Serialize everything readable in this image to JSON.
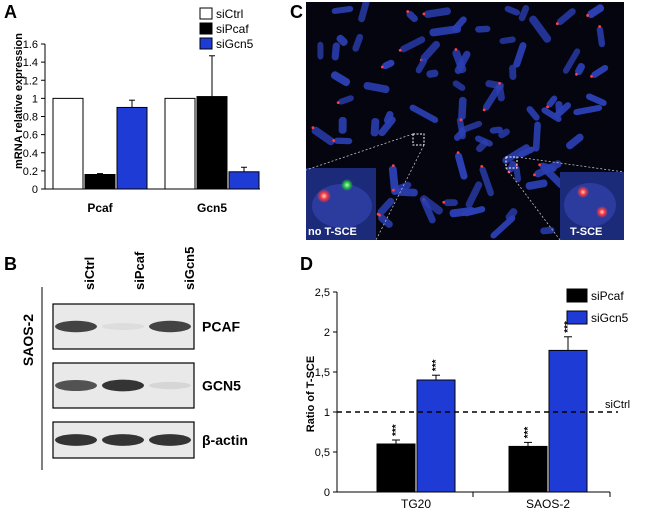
{
  "panels": {
    "A": "A",
    "B": "B",
    "C": "C",
    "D": "D"
  },
  "chart_data": [
    {
      "panel": "A",
      "type": "bar",
      "title": "",
      "ylabel": "mRNA relative expression",
      "xlabel": "",
      "ylim": [
        0,
        1.6
      ],
      "yticks": [
        "0",
        "0.2",
        "0.4",
        "0.6",
        "0.8",
        "1",
        "1.2",
        "1.4",
        "1.6"
      ],
      "categories": [
        "Pcaf",
        "Gcn5"
      ],
      "series": [
        {
          "name": "siCtrl",
          "values": [
            1.0,
            1.0
          ],
          "errors": [
            0,
            0
          ],
          "color": "#ffffff"
        },
        {
          "name": "siPcaf",
          "values": [
            0.16,
            1.02
          ],
          "errors": [
            0.01,
            0.45
          ],
          "color": "#000000"
        },
        {
          "name": "siGcn5",
          "values": [
            0.9,
            0.19
          ],
          "errors": [
            0.08,
            0.05
          ],
          "color": "#1f3bd6"
        }
      ],
      "legend_position": "top-right"
    },
    {
      "panel": "D",
      "type": "bar",
      "title": "",
      "ylabel": "Ratio of T-SCE",
      "xlabel": "",
      "ylim": [
        0,
        2.5
      ],
      "yticks": [
        "0",
        "0,5",
        "1",
        "1,5",
        "2",
        "2,5"
      ],
      "categories": [
        "TG20",
        "SAOS-2"
      ],
      "series": [
        {
          "name": "siPcaf",
          "values": [
            0.6,
            0.57
          ],
          "errors": [
            0.05,
            0.05
          ],
          "color": "#000000"
        },
        {
          "name": "siGcn5",
          "values": [
            1.4,
            1.77
          ],
          "errors": [
            0.06,
            0.17
          ],
          "color": "#1f3bd6"
        }
      ],
      "significance": "***",
      "reference_line": {
        "value": 1,
        "label": "siCtrl",
        "style": "dashed"
      },
      "legend_position": "top-right"
    }
  ],
  "blot": {
    "lanes": [
      "siCtrl",
      "siPcaf",
      "siGcn5"
    ],
    "cell_line": "SAOS-2",
    "rows": [
      {
        "label": "PCAF",
        "intensity": [
          0.9,
          0.15,
          0.9
        ]
      },
      {
        "label": "GCN5",
        "intensity": [
          0.85,
          0.95,
          0.2
        ]
      },
      {
        "label": "β-actin",
        "intensity": [
          0.95,
          0.95,
          0.95
        ]
      }
    ]
  },
  "micrograph": {
    "inset_left_label": "no T-SCE",
    "inset_right_label": "T-SCE"
  },
  "colors": {
    "blue": "#1f3bd6",
    "black": "#000000",
    "micro_bg": "#050510",
    "chromosome": "#2b3fb3"
  }
}
